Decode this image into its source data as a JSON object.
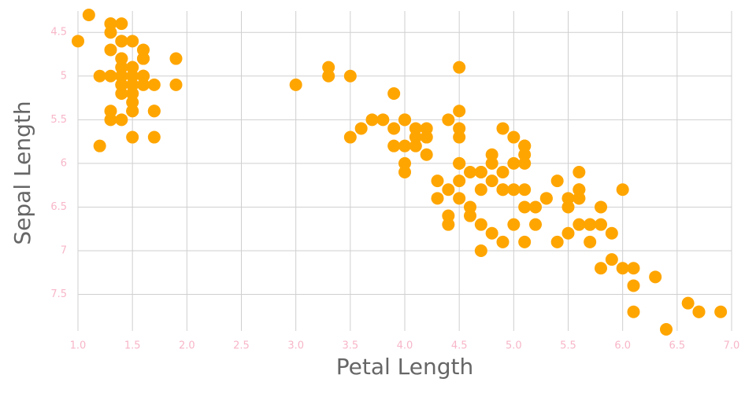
{
  "chart_data": {
    "type": "scatter",
    "x_label": "Petal Length",
    "y_label": "Sepal Length",
    "color": "#ffa500",
    "grid": true,
    "xlim": [
      1,
      7
    ],
    "ylim": [
      7.9,
      4.3
    ],
    "xticks": [
      {
        "value": 1,
        "label": "1.0"
      },
      1.5,
      {
        "value": 2,
        "label": "2.0"
      },
      2.5,
      {
        "value": 3,
        "label": "3.0"
      },
      3.5,
      {
        "value": 4,
        "label": "4.0"
      },
      4.5,
      {
        "value": 5,
        "label": "5.0"
      },
      5.5,
      {
        "value": 6,
        "label": "6.0"
      },
      6.5,
      {
        "value": 7,
        "label": "7.0"
      }
    ],
    "yticks": [
      4.5,
      5,
      5.5,
      6,
      6.5,
      7,
      7.5
    ],
    "x": [
      1.4,
      1.4,
      1.3,
      1.5,
      1.4,
      1.7,
      1.4,
      1.5,
      1.4,
      1.5,
      1.5,
      1.6,
      1.4,
      1.1,
      1.2,
      1.5,
      1.3,
      1.4,
      1.7,
      1.5,
      1.7,
      1.5,
      1.0,
      1.7,
      1.9,
      1.6,
      1.6,
      1.5,
      1.4,
      1.6,
      1.6,
      1.5,
      1.5,
      1.4,
      1.5,
      1.2,
      1.3,
      1.4,
      1.3,
      1.5,
      1.3,
      1.3,
      1.3,
      1.6,
      1.9,
      1.4,
      1.6,
      1.4,
      1.5,
      1.4,
      4.7,
      4.5,
      4.9,
      4.0,
      4.6,
      4.5,
      4.7,
      3.3,
      4.6,
      3.9,
      3.5,
      4.2,
      4.0,
      4.7,
      3.6,
      4.4,
      4.5,
      4.1,
      4.5,
      3.9,
      4.8,
      4.0,
      4.9,
      4.7,
      4.3,
      4.4,
      4.8,
      5.0,
      4.5,
      3.5,
      3.8,
      3.7,
      3.9,
      5.1,
      4.5,
      4.5,
      4.7,
      4.4,
      4.1,
      4.0,
      4.4,
      4.6,
      4.0,
      3.3,
      4.2,
      4.2,
      4.2,
      4.3,
      3.0,
      4.1,
      6.0,
      5.1,
      5.9,
      5.6,
      5.8,
      6.6,
      4.5,
      6.3,
      5.8,
      6.1,
      5.1,
      5.3,
      5.5,
      5.0,
      5.1,
      5.3,
      5.5,
      6.7,
      6.9,
      5.0,
      5.7,
      4.9,
      6.7,
      4.9,
      5.7,
      6.0,
      4.8,
      4.9,
      5.6,
      5.8,
      6.1,
      6.4,
      5.6,
      5.1,
      5.6,
      6.1,
      5.6,
      5.5,
      4.8,
      5.4,
      5.6,
      5.1,
      5.1,
      5.9,
      5.7,
      5.2,
      5.0,
      5.2,
      5.4,
      5.1
    ],
    "y": [
      5.1,
      4.9,
      4.7,
      4.6,
      5.0,
      5.4,
      4.6,
      5.0,
      4.4,
      4.9,
      5.4,
      4.8,
      4.8,
      4.3,
      5.8,
      5.7,
      5.4,
      5.1,
      5.7,
      5.1,
      5.4,
      5.1,
      4.6,
      5.1,
      4.8,
      5.0,
      5.0,
      5.2,
      5.2,
      4.7,
      4.8,
      5.4,
      5.2,
      5.5,
      4.9,
      5.0,
      5.5,
      4.9,
      4.4,
      5.1,
      5.0,
      4.5,
      4.4,
      5.0,
      5.1,
      4.8,
      5.1,
      4.6,
      5.3,
      5.0,
      7.0,
      6.4,
      6.9,
      5.5,
      6.5,
      5.7,
      6.3,
      4.9,
      6.6,
      5.2,
      5.0,
      5.9,
      6.0,
      6.1,
      5.6,
      6.7,
      5.6,
      5.8,
      6.2,
      5.6,
      5.9,
      6.1,
      6.3,
      6.1,
      6.4,
      6.6,
      6.8,
      6.7,
      6.0,
      5.7,
      5.5,
      5.5,
      5.8,
      6.0,
      5.4,
      6.0,
      6.7,
      6.3,
      5.6,
      5.5,
      5.5,
      6.1,
      5.8,
      5.0,
      5.6,
      5.7,
      5.7,
      6.2,
      5.1,
      5.7,
      6.3,
      5.8,
      7.1,
      6.3,
      6.5,
      7.6,
      4.9,
      7.3,
      6.7,
      7.2,
      6.5,
      6.4,
      6.8,
      5.7,
      5.8,
      6.4,
      6.5,
      7.7,
      7.7,
      6.0,
      6.9,
      5.6,
      7.7,
      6.3,
      6.7,
      7.2,
      6.2,
      6.1,
      6.4,
      7.2,
      7.4,
      7.9,
      6.4,
      6.3,
      6.1,
      7.7,
      6.3,
      6.4,
      6.0,
      6.9,
      6.7,
      6.9,
      5.8,
      6.8,
      6.7,
      6.7,
      6.3,
      6.5,
      6.2,
      5.9
    ]
  }
}
